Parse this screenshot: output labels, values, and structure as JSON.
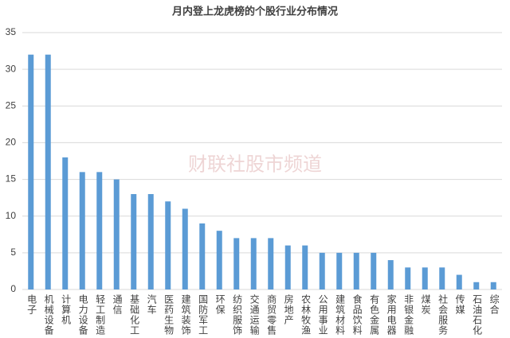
{
  "chart_data": {
    "type": "bar",
    "title": "月内登上龙虎榜的个股行业分布情况",
    "watermark": "财联社股市频道",
    "categories": [
      "电子",
      "机械设备",
      "计算机",
      "电力设备",
      "轻工制造",
      "通信",
      "基础化工",
      "汽车",
      "医药生物",
      "建筑装饰",
      "国防军工",
      "环保",
      "纺织服饰",
      "交通运输",
      "商贸零售",
      "房地产",
      "农林牧渔",
      "公用事业",
      "建筑材料",
      "食品饮料",
      "有色金属",
      "家用电器",
      "非银金融",
      "煤炭",
      "社会服务",
      "传媒",
      "石油石化",
      "综合"
    ],
    "values": [
      32,
      32,
      18,
      16,
      16,
      15,
      13,
      13,
      12,
      11,
      9,
      8,
      7,
      7,
      7,
      6,
      6,
      5,
      5,
      5,
      5,
      4,
      3,
      3,
      3,
      2,
      1,
      1
    ],
    "color": "#5b9bd5",
    "ylim": [
      0,
      35
    ],
    "yticks": [
      0,
      5,
      10,
      15,
      20,
      25,
      30,
      35
    ],
    "grid": true
  }
}
